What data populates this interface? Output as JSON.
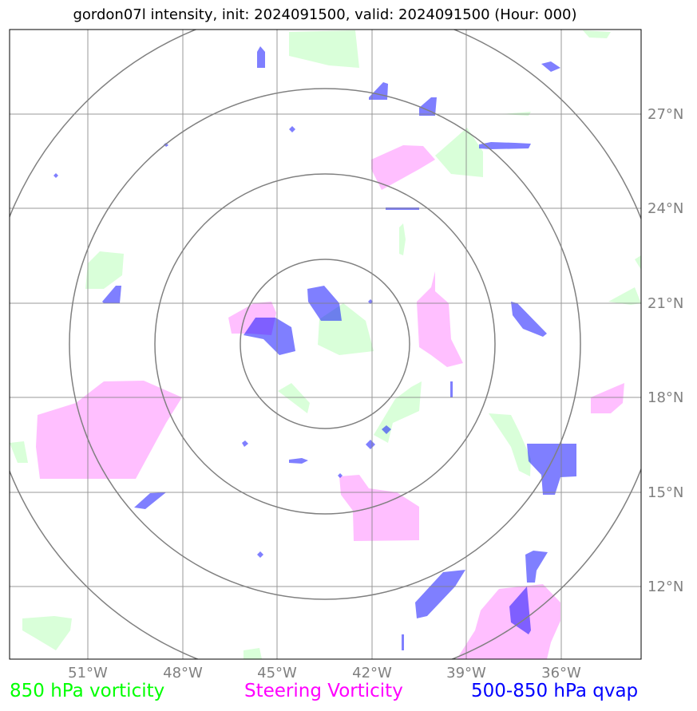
{
  "title": "gordon07l intensity, init: 2024091500, valid: 2024091500 (Hour: 000)",
  "lon_ticks": [
    "51°W",
    "48°W",
    "45°W",
    "42°W",
    "39°W",
    "36°W"
  ],
  "lat_ticks": [
    "27°N",
    "24°N",
    "21°N",
    "18°N",
    "15°N",
    "12°N"
  ],
  "legend": {
    "vort850": "850 hPa vorticity",
    "steering": "Steering Vorticity",
    "qvap": "500-850 hPa qvap"
  },
  "colors": {
    "vort850": "#00ff00",
    "steering": "#ff00ff",
    "qvap": "#0000ff",
    "grid": "#808080"
  }
}
